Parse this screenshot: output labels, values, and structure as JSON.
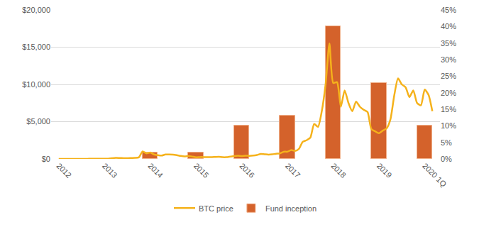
{
  "chart_data": {
    "type": "combo",
    "categories": [
      "2012",
      null,
      null,
      null,
      null,
      null,
      null,
      null,
      null,
      null,
      null,
      null,
      "2013",
      null,
      null,
      null,
      null,
      null,
      null,
      null,
      null,
      null,
      null,
      null,
      "2014",
      null,
      null,
      null,
      null,
      null,
      null,
      null,
      null,
      null,
      null,
      null,
      "2015",
      null,
      null,
      null,
      null,
      null,
      null,
      null,
      null,
      null,
      null,
      null,
      "2016",
      null,
      null,
      null,
      null,
      null,
      null,
      null,
      null,
      null,
      null,
      null,
      "2017",
      null,
      null,
      null,
      null,
      null,
      null,
      null,
      null,
      null,
      null,
      null,
      "2018",
      null,
      null,
      null,
      null,
      null,
      null,
      null,
      null,
      null,
      null,
      null,
      "2019",
      null,
      null,
      null,
      null,
      null,
      null,
      null,
      null,
      null,
      null,
      null,
      "2020 1Q",
      null,
      null
    ],
    "series": [
      {
        "name": "BTC price",
        "type": "line",
        "color": "#f5b21b",
        "values": [
          5,
          5,
          5,
          5,
          5,
          7,
          9,
          10,
          12,
          12,
          12,
          13,
          20,
          33,
          90,
          140,
          120,
          100,
          95,
          120,
          140,
          200,
          1000,
          750,
          850,
          600,
          500,
          450,
          600,
          600,
          580,
          500,
          400,
          340,
          380,
          320,
          220,
          250,
          250,
          235,
          230,
          260,
          285,
          230,
          235,
          310,
          380,
          430,
          370,
          430,
          415,
          450,
          530,
          670,
          625,
          575,
          610,
          700,
          740,
          960,
          970,
          1190,
          1080,
          1350,
          2300,
          2500,
          2850,
          4700,
          4300,
          6400,
          10000,
          15500,
          10200,
          10300,
          7000,
          9200,
          7500,
          6400,
          7700,
          7000,
          6600,
          6300,
          4000,
          3700,
          3450,
          3800,
          4100,
          5300,
          8500,
          10800,
          10000,
          9600,
          8300,
          9200,
          7500,
          7200,
          9300,
          8600,
          6400
        ]
      },
      {
        "name": "Fund inception",
        "type": "bar",
        "color": "#d4622b",
        "axis": "y2",
        "values": [
          null,
          null,
          null,
          null,
          null,
          null,
          null,
          null,
          null,
          null,
          null,
          null,
          null,
          null,
          null,
          null,
          null,
          null,
          null,
          null,
          null,
          null,
          null,
          null,
          2,
          null,
          null,
          null,
          null,
          null,
          null,
          null,
          null,
          null,
          null,
          null,
          2,
          null,
          null,
          null,
          null,
          null,
          null,
          null,
          null,
          null,
          null,
          null,
          10,
          null,
          null,
          null,
          null,
          null,
          null,
          null,
          null,
          null,
          null,
          null,
          13,
          null,
          null,
          null,
          null,
          null,
          null,
          null,
          null,
          null,
          null,
          null,
          40,
          null,
          null,
          null,
          null,
          null,
          null,
          null,
          null,
          null,
          null,
          null,
          23,
          null,
          null,
          null,
          null,
          null,
          null,
          null,
          null,
          null,
          null,
          null,
          10,
          null,
          null
        ]
      }
    ],
    "ylim": [
      0,
      20000
    ],
    "yticks": [
      {
        "value": 0,
        "label": "$0"
      },
      {
        "value": 5000,
        "label": "$5,000"
      },
      {
        "value": 10000,
        "label": "$10,000"
      },
      {
        "value": 15000,
        "label": "$15,000"
      },
      {
        "value": 20000,
        "label": "$20,000"
      }
    ],
    "y2lim": [
      0,
      45
    ],
    "y2ticks": [
      {
        "value": 0,
        "label": "0%"
      },
      {
        "value": 5,
        "label": "5%"
      },
      {
        "value": 10,
        "label": "10%"
      },
      {
        "value": 15,
        "label": "15%"
      },
      {
        "value": 20,
        "label": "20%"
      },
      {
        "value": 25,
        "label": "25%"
      },
      {
        "value": 30,
        "label": "30%"
      },
      {
        "value": 35,
        "label": "35%"
      },
      {
        "value": 40,
        "label": "40%"
      },
      {
        "value": 45,
        "label": "45%"
      }
    ],
    "grid": true,
    "legend": "bottom"
  }
}
